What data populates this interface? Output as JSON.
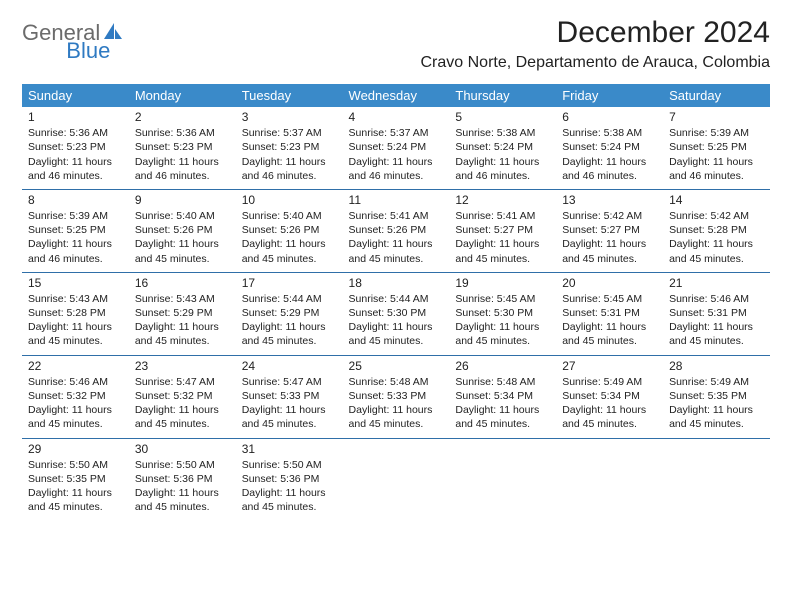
{
  "logo": {
    "text1": "General",
    "text2": "Blue"
  },
  "title": "December 2024",
  "location": "Cravo Norte, Departamento de Arauca, Colombia",
  "colors": {
    "header_bg": "#3a8ac9",
    "header_text": "#ffffff",
    "border": "#2f6fa8",
    "logo_gray": "#6b6b6b",
    "logo_blue": "#2f7ac2",
    "text": "#222222",
    "page_bg": "#ffffff"
  },
  "weekdays": [
    "Sunday",
    "Monday",
    "Tuesday",
    "Wednesday",
    "Thursday",
    "Friday",
    "Saturday"
  ],
  "labels": {
    "sunrise": "Sunrise:",
    "sunset": "Sunset:",
    "daylight": "Daylight:"
  },
  "days": [
    {
      "n": 1,
      "sunrise": "5:36 AM",
      "sunset": "5:23 PM",
      "daylight": "11 hours and 46 minutes."
    },
    {
      "n": 2,
      "sunrise": "5:36 AM",
      "sunset": "5:23 PM",
      "daylight": "11 hours and 46 minutes."
    },
    {
      "n": 3,
      "sunrise": "5:37 AM",
      "sunset": "5:23 PM",
      "daylight": "11 hours and 46 minutes."
    },
    {
      "n": 4,
      "sunrise": "5:37 AM",
      "sunset": "5:24 PM",
      "daylight": "11 hours and 46 minutes."
    },
    {
      "n": 5,
      "sunrise": "5:38 AM",
      "sunset": "5:24 PM",
      "daylight": "11 hours and 46 minutes."
    },
    {
      "n": 6,
      "sunrise": "5:38 AM",
      "sunset": "5:24 PM",
      "daylight": "11 hours and 46 minutes."
    },
    {
      "n": 7,
      "sunrise": "5:39 AM",
      "sunset": "5:25 PM",
      "daylight": "11 hours and 46 minutes."
    },
    {
      "n": 8,
      "sunrise": "5:39 AM",
      "sunset": "5:25 PM",
      "daylight": "11 hours and 46 minutes."
    },
    {
      "n": 9,
      "sunrise": "5:40 AM",
      "sunset": "5:26 PM",
      "daylight": "11 hours and 45 minutes."
    },
    {
      "n": 10,
      "sunrise": "5:40 AM",
      "sunset": "5:26 PM",
      "daylight": "11 hours and 45 minutes."
    },
    {
      "n": 11,
      "sunrise": "5:41 AM",
      "sunset": "5:26 PM",
      "daylight": "11 hours and 45 minutes."
    },
    {
      "n": 12,
      "sunrise": "5:41 AM",
      "sunset": "5:27 PM",
      "daylight": "11 hours and 45 minutes."
    },
    {
      "n": 13,
      "sunrise": "5:42 AM",
      "sunset": "5:27 PM",
      "daylight": "11 hours and 45 minutes."
    },
    {
      "n": 14,
      "sunrise": "5:42 AM",
      "sunset": "5:28 PM",
      "daylight": "11 hours and 45 minutes."
    },
    {
      "n": 15,
      "sunrise": "5:43 AM",
      "sunset": "5:28 PM",
      "daylight": "11 hours and 45 minutes."
    },
    {
      "n": 16,
      "sunrise": "5:43 AM",
      "sunset": "5:29 PM",
      "daylight": "11 hours and 45 minutes."
    },
    {
      "n": 17,
      "sunrise": "5:44 AM",
      "sunset": "5:29 PM",
      "daylight": "11 hours and 45 minutes."
    },
    {
      "n": 18,
      "sunrise": "5:44 AM",
      "sunset": "5:30 PM",
      "daylight": "11 hours and 45 minutes."
    },
    {
      "n": 19,
      "sunrise": "5:45 AM",
      "sunset": "5:30 PM",
      "daylight": "11 hours and 45 minutes."
    },
    {
      "n": 20,
      "sunrise": "5:45 AM",
      "sunset": "5:31 PM",
      "daylight": "11 hours and 45 minutes."
    },
    {
      "n": 21,
      "sunrise": "5:46 AM",
      "sunset": "5:31 PM",
      "daylight": "11 hours and 45 minutes."
    },
    {
      "n": 22,
      "sunrise": "5:46 AM",
      "sunset": "5:32 PM",
      "daylight": "11 hours and 45 minutes."
    },
    {
      "n": 23,
      "sunrise": "5:47 AM",
      "sunset": "5:32 PM",
      "daylight": "11 hours and 45 minutes."
    },
    {
      "n": 24,
      "sunrise": "5:47 AM",
      "sunset": "5:33 PM",
      "daylight": "11 hours and 45 minutes."
    },
    {
      "n": 25,
      "sunrise": "5:48 AM",
      "sunset": "5:33 PM",
      "daylight": "11 hours and 45 minutes."
    },
    {
      "n": 26,
      "sunrise": "5:48 AM",
      "sunset": "5:34 PM",
      "daylight": "11 hours and 45 minutes."
    },
    {
      "n": 27,
      "sunrise": "5:49 AM",
      "sunset": "5:34 PM",
      "daylight": "11 hours and 45 minutes."
    },
    {
      "n": 28,
      "sunrise": "5:49 AM",
      "sunset": "5:35 PM",
      "daylight": "11 hours and 45 minutes."
    },
    {
      "n": 29,
      "sunrise": "5:50 AM",
      "sunset": "5:35 PM",
      "daylight": "11 hours and 45 minutes."
    },
    {
      "n": 30,
      "sunrise": "5:50 AM",
      "sunset": "5:36 PM",
      "daylight": "11 hours and 45 minutes."
    },
    {
      "n": 31,
      "sunrise": "5:50 AM",
      "sunset": "5:36 PM",
      "daylight": "11 hours and 45 minutes."
    }
  ],
  "layout": {
    "first_day_column": 0,
    "weeks": 5,
    "columns": 7
  }
}
